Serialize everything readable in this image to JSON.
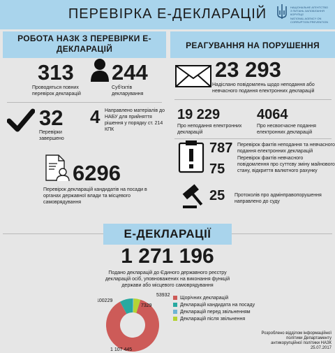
{
  "header": {
    "title": "ПЕРЕВІРКА Е-ДЕКЛАРАЦІЙ"
  },
  "logo": {
    "lines": [
      "НАЦІОНАЛЬНЕ АГЕНТСТВО",
      "З ПИТАНЬ ЗАПОБІГАННЯ",
      "КОРУПЦІЇ",
      "NATIONAL AGENCY ON",
      "CORRUPTION PREVENTION"
    ]
  },
  "sections": {
    "left": "РОБОТА НАЗК З ПЕРЕВІРКИ Е-ДЕКЛАРАЦІЙ",
    "right": "РЕАГУВАННЯ НА ПОРУШЕННЯ"
  },
  "stats": {
    "full_checks": {
      "value": "313",
      "label": "Проводяться повних перевірок декларацій"
    },
    "subjects": {
      "value": "244",
      "label": "Суб'єктів декларування"
    },
    "completed": {
      "value": "32",
      "label": "Перевірки завершено"
    },
    "nabu": {
      "value": "4",
      "label": "Направлено матеріалів до НАБУ для прийняття рішення у порядку ст. 214 КПК"
    },
    "candidates": {
      "value": "6296",
      "label": "Перевірок декларацій кандидатів на посади в органах державної влади та місцевого самоврядування"
    },
    "notices": {
      "value": "23 293",
      "label": "Надіслано повідомлень щодо неподання або невчасного подання електронних декларацій"
    },
    "not_filed": {
      "value": "19 229",
      "label": "Про неподання електронних декларацій"
    },
    "late_filed": {
      "value": "4064",
      "label": "Про несвоєчасне подання електронних декларацій"
    },
    "fact_checks": {
      "value": "787",
      "label": "Перевірок фактів неподання та невчасного подання електронних декларацій"
    },
    "change_checks": {
      "value": "75",
      "label": "Перевірок фактів невчасного повідомлення про суттєву зміну майнового стану, відкриття валютного рахунку"
    },
    "protocols": {
      "value": "25",
      "label": "Протоколів про адмінправопорушення направлено до суду"
    }
  },
  "edecl": {
    "title": "Е-ДЕКЛАРАЦІЇ",
    "total": "1 271 196",
    "total_label": "Подано декларацій до Єдиного державного реєстру декларацій осіб, уповноважених на виконання функцій держави або місцевого самоврядування"
  },
  "chart_data": {
    "type": "pie",
    "style": "donut",
    "categories": [
      "Щорічних декларацій",
      "Декларацій кандидата на посаду",
      "Декларацій перед звільненням",
      "Декларацій після звільнення"
    ],
    "values": [
      1107445,
      100229,
      7329,
      53932
    ],
    "value_labels": [
      "1 107 445",
      "100229",
      "7329",
      "53932"
    ],
    "colors": [
      "#cd5b58",
      "#27a9a0",
      "#6fb5d6",
      "#b5d334"
    ],
    "legend_position": "right"
  },
  "footer": {
    "lines": [
      "Розроблено відділом інформаційної",
      "політики Департаменту",
      "антикорупційної політики НАЗК",
      "25.07.2017"
    ]
  }
}
